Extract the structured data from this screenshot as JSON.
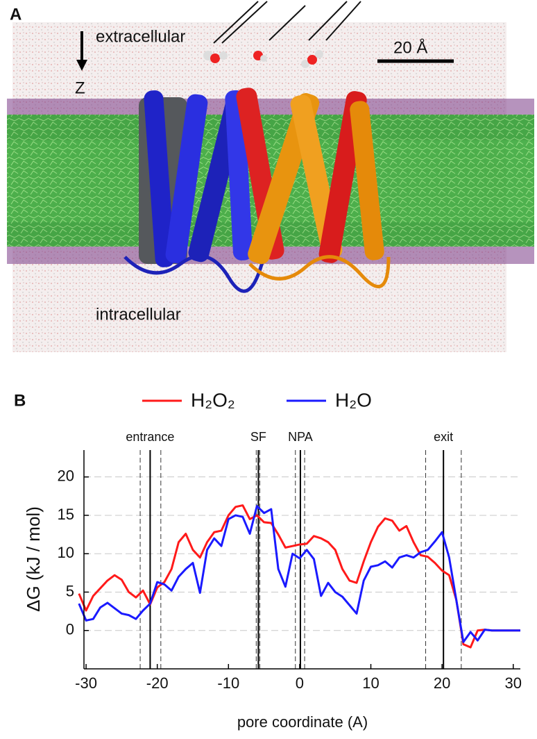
{
  "panel_a": {
    "label": "A",
    "top_label": "extracellular",
    "axis_label": "Z",
    "scale_label": "20 Å",
    "bottom_label": "intracellular"
  },
  "chart_data": {
    "type": "line",
    "panel_label": "B",
    "x_label": "pore coordinate (A)",
    "y_label": "ΔG (kJ / mol)",
    "x": [
      -31,
      -30,
      -29,
      -28,
      -27,
      -26,
      -25,
      -24,
      -23,
      -22,
      -21,
      -20,
      -19,
      -18,
      -17,
      -16,
      -15,
      -14,
      -13,
      -12,
      -11,
      -10,
      -9,
      -8,
      -7,
      -6,
      -5,
      -4,
      -3,
      -2,
      -1,
      0,
      1,
      2,
      3,
      4,
      5,
      6,
      7,
      8,
      9,
      10,
      11,
      12,
      13,
      14,
      15,
      16,
      17,
      18,
      19,
      20,
      21,
      22,
      23,
      24,
      25,
      26,
      27,
      28,
      29,
      30,
      31
    ],
    "series": [
      {
        "name": "H₂O₂",
        "color": "#ff1a1a",
        "values": [
          4.8,
          2.6,
          4.5,
          5.5,
          6.5,
          7.2,
          6.6,
          5.0,
          4.3,
          5.2,
          3.4,
          5.6,
          6.3,
          8.0,
          11.5,
          12.6,
          10.5,
          9.5,
          11.5,
          12.8,
          13.0,
          15.0,
          16.1,
          16.3,
          14.5,
          15.0,
          14.1,
          14.0,
          12.5,
          10.8,
          11.0,
          11.2,
          11.3,
          12.3,
          12.0,
          11.5,
          10.5,
          8.0,
          6.5,
          6.2,
          9.0,
          11.5,
          13.5,
          14.6,
          14.3,
          13.0,
          13.6,
          11.5,
          9.8,
          9.6,
          8.8,
          7.8,
          7.2,
          4.0,
          -1.8,
          -2.2,
          0.0,
          0.1,
          0,
          0,
          0,
          0,
          0
        ]
      },
      {
        "name": "H₂O",
        "color": "#1a1aff",
        "values": [
          3.5,
          1.3,
          1.5,
          3.0,
          3.6,
          2.9,
          2.2,
          2.0,
          1.5,
          2.6,
          3.5,
          6.3,
          6.0,
          5.2,
          7.0,
          8.0,
          8.8,
          4.9,
          10.5,
          12.0,
          11.0,
          14.5,
          15.0,
          14.8,
          12.6,
          16.2,
          15.3,
          15.8,
          8.0,
          5.7,
          10.0,
          9.4,
          10.5,
          9.3,
          4.5,
          6.2,
          5.0,
          4.4,
          3.3,
          2.2,
          6.5,
          8.3,
          8.5,
          9.0,
          8.2,
          9.5,
          9.8,
          9.5,
          10.2,
          10.5,
          11.6,
          12.8,
          9.5,
          4.0,
          -1.5,
          -0.2,
          -1.3,
          0.1,
          0,
          0,
          0,
          0,
          0
        ]
      }
    ],
    "annotations": [
      {
        "label": "entrance",
        "x": -21.0,
        "lo": -22.4,
        "hi": -19.5
      },
      {
        "label": "SF",
        "x": -5.8,
        "lo": -6.1,
        "hi": -5.6
      },
      {
        "label": "NPA",
        "x": 0.1,
        "lo": -0.6,
        "hi": 0.7
      },
      {
        "label": "exit",
        "x": 20.2,
        "lo": 17.7,
        "hi": 22.7
      }
    ],
    "xlim": [
      -30.3,
      31
    ],
    "xticks": [
      -30,
      -20,
      -10,
      0,
      10,
      20,
      30
    ],
    "ylim": [
      -5,
      23.5
    ],
    "yticks": [
      0,
      5,
      10,
      15,
      20
    ],
    "grid": true
  }
}
